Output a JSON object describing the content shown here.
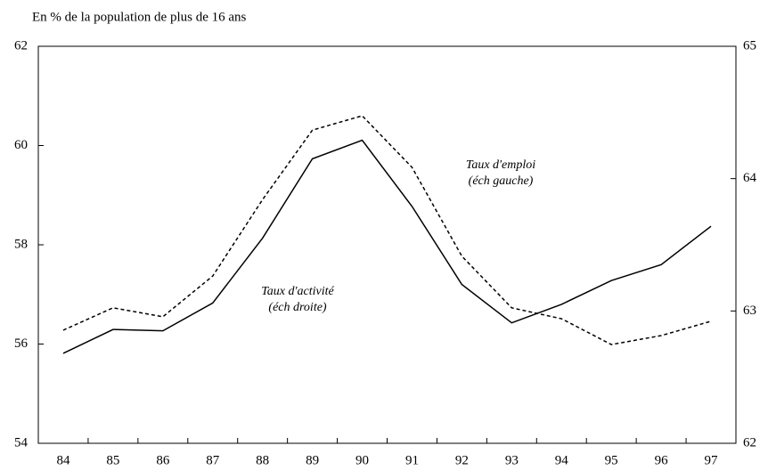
{
  "chart_data": {
    "type": "line",
    "title": "En % de la population de plus de 16 ans",
    "categories": [
      "84",
      "85",
      "86",
      "87",
      "88",
      "89",
      "90",
      "91",
      "92",
      "93",
      "94",
      "95",
      "96",
      "97"
    ],
    "ylim": [
      54,
      62
    ],
    "yticks": [
      54,
      56,
      58,
      60,
      62
    ],
    "y2lim": [
      62,
      65
    ],
    "y2ticks": [
      62,
      63,
      64,
      65
    ],
    "series": [
      {
        "name": "Taux d'emploi",
        "note": "(éch gauche)",
        "color": "#000",
        "dash": true,
        "axis": "y",
        "values": [
          56.28,
          56.73,
          56.55,
          57.37,
          58.91,
          60.31,
          60.6,
          59.56,
          57.77,
          56.73,
          56.51,
          55.99,
          56.17,
          56.46
        ]
      },
      {
        "name": "Taux d'activité",
        "note": "(éch droite)",
        "color": "#000",
        "dash": false,
        "axis": "y2",
        "values": [
          62.68,
          62.86,
          62.85,
          63.06,
          63.55,
          64.15,
          64.29,
          63.79,
          63.2,
          62.91,
          63.05,
          63.23,
          63.35,
          63.64
        ]
      }
    ]
  }
}
